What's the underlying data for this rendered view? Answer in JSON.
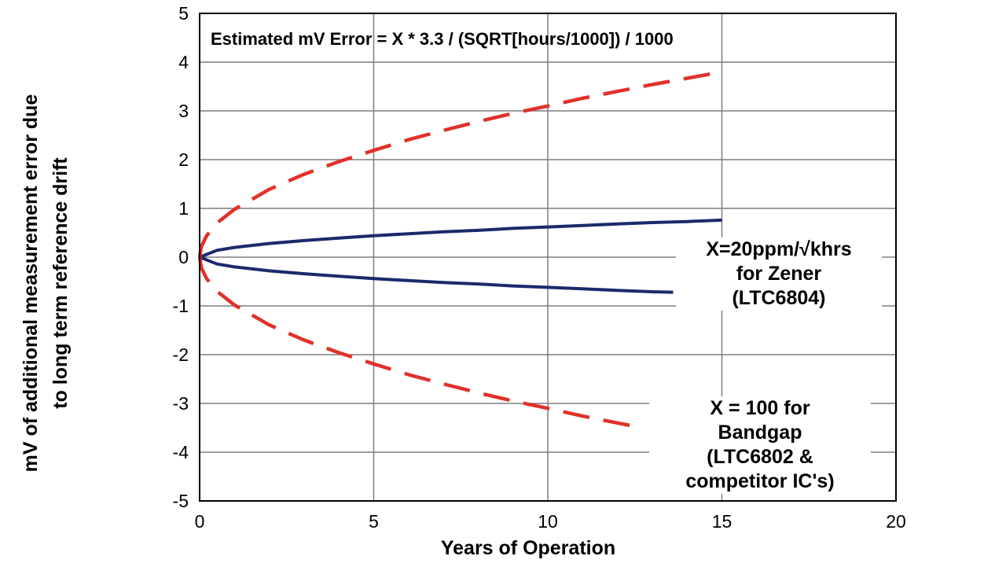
{
  "chart_data": {
    "type": "line",
    "title": "",
    "formula": "Estimated mV Error  = X * 3.3 / (SQRT[hours/1000]) / 1000",
    "xlabel": "Years of Operation",
    "ylabel_line1": "mV of additional measurement error due",
    "ylabel_line2": "to long term reference drift",
    "xlim": [
      0,
      20
    ],
    "ylim": [
      -5,
      5
    ],
    "x_ticks": [
      "0",
      "5",
      "10",
      "15",
      "20"
    ],
    "y_ticks": [
      "5",
      "4",
      "3",
      "2",
      "1",
      "0",
      "-1",
      "-2",
      "-3",
      "-4",
      "-5"
    ],
    "grid": true,
    "annotations": {
      "zener": [
        "X=20ppm/√khrs",
        "for Zener",
        "(LTC6804)"
      ],
      "bandgap": [
        "X = 100 for",
        "Bandgap",
        "(LTC6802 &",
        "competitor IC's)"
      ]
    },
    "series": [
      {
        "style": "solid",
        "color": "#1b2a6b",
        "x": [
          0,
          0.5,
          1,
          2,
          3,
          4,
          5,
          6,
          7,
          8,
          9,
          10,
          11,
          12,
          13,
          14,
          15
        ],
        "y": [
          0,
          0.14,
          0.2,
          0.28,
          0.34,
          0.39,
          0.44,
          0.48,
          0.52,
          0.55,
          0.59,
          0.62,
          0.65,
          0.68,
          0.71,
          0.73,
          0.76
        ]
      },
      {
        "style": "solid",
        "color": "#1b2a6b",
        "x": [
          0,
          0.5,
          1,
          2,
          3,
          4,
          5,
          6,
          7,
          8,
          9,
          10,
          11,
          12,
          13,
          13.6
        ],
        "y": [
          0,
          -0.14,
          -0.2,
          -0.28,
          -0.34,
          -0.39,
          -0.44,
          -0.48,
          -0.52,
          -0.55,
          -0.59,
          -0.62,
          -0.65,
          -0.68,
          -0.71,
          -0.72
        ]
      },
      {
        "style": "dashed",
        "color": "#e0312a",
        "x": [
          0,
          0.05,
          0.2,
          0.5,
          1,
          2,
          3,
          4,
          5,
          6,
          7,
          8,
          9,
          10,
          11,
          12,
          13,
          14,
          15
        ],
        "y": [
          0,
          0.22,
          0.44,
          0.7,
          0.98,
          1.39,
          1.7,
          1.96,
          2.19,
          2.41,
          2.6,
          2.78,
          2.95,
          3.1,
          3.26,
          3.4,
          3.54,
          3.67,
          3.8
        ]
      },
      {
        "style": "dashed",
        "color": "#e0312a",
        "x": [
          0,
          0.05,
          0.2,
          0.5,
          1,
          2,
          3,
          4,
          5,
          6,
          7,
          8,
          9,
          10,
          11,
          12,
          12.7
        ],
        "y": [
          0,
          -0.22,
          -0.44,
          -0.7,
          -0.98,
          -1.39,
          -1.7,
          -1.96,
          -2.19,
          -2.41,
          -2.6,
          -2.78,
          -2.95,
          -3.1,
          -3.26,
          -3.4,
          -3.5
        ]
      }
    ]
  }
}
